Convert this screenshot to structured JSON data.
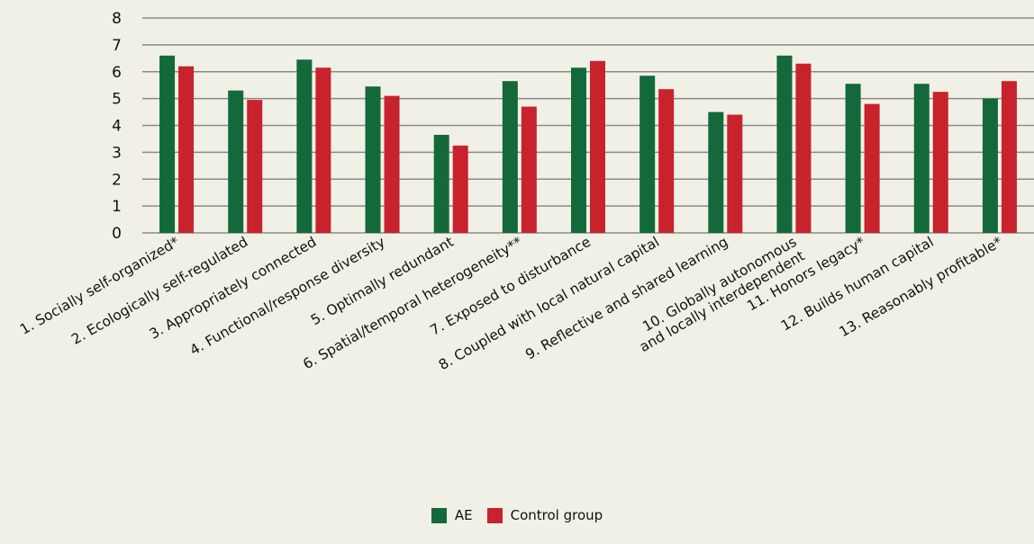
{
  "chart_data": {
    "type": "bar",
    "ylim": [
      0,
      8
    ],
    "yticks": [
      0,
      1,
      2,
      3,
      4,
      5,
      6,
      7,
      8
    ],
    "grid": true,
    "legend_position": "bottom-center",
    "categories": [
      "1. Socially self-organized*",
      "2. Ecologically self-regulated",
      "3. Appropriately connected",
      "4. Functional/response diversity",
      "5. Optimally redundant",
      "6. Spatial/temporal heterogeneity**",
      "7. Exposed to disturbance",
      "8. Coupled with local natural capital",
      "9. Reflective and shared learning",
      [
        "10. Globally autonomous",
        "and locally interdependent"
      ],
      "11. Honors legacy*",
      "12. Builds human capital",
      "13. Reasonably profitable*"
    ],
    "series": [
      {
        "name": "AE",
        "color": "#13693a",
        "values": [
          6.6,
          5.3,
          6.45,
          5.45,
          3.65,
          5.65,
          6.15,
          5.85,
          4.5,
          6.6,
          5.55,
          5.55,
          5.0
        ]
      },
      {
        "name": "Control group",
        "color": "#c8222d",
        "values": [
          6.2,
          4.95,
          6.15,
          5.1,
          3.25,
          4.7,
          6.4,
          5.35,
          4.4,
          6.3,
          4.8,
          5.25,
          5.65
        ]
      }
    ]
  }
}
